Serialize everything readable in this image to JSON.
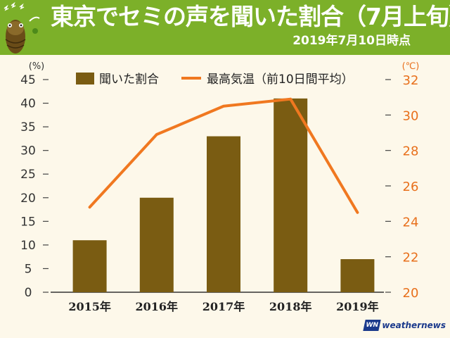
{
  "header": {
    "title": "東京でセミの声を聞いた割合（7月上旬）",
    "subtitle": "2019年7月10日時点"
  },
  "logo": {
    "mark": "WN",
    "text": "weathernews"
  },
  "colors": {
    "header_bg": "#7cb029",
    "bar": "#7a5c12",
    "line": "#f07820",
    "left_axis": "#333333",
    "right_axis": "#e8701c"
  },
  "chart_data": {
    "type": "bar",
    "categories": [
      "2015年",
      "2016年",
      "2017年",
      "2018年",
      "2019年"
    ],
    "series": [
      {
        "name": "聞いた割合",
        "type": "bar",
        "axis": "left",
        "values": [
          11,
          20,
          33,
          41,
          7
        ]
      },
      {
        "name": "最高気温（前10日間平均）",
        "type": "line",
        "axis": "right",
        "values": [
          24.8,
          28.9,
          30.5,
          30.9,
          24.5
        ]
      }
    ],
    "y_left": {
      "unit_label": "(%)",
      "ylim": [
        0,
        45
      ],
      "ticks": [
        0,
        5,
        10,
        15,
        20,
        25,
        30,
        35,
        40,
        45
      ]
    },
    "y_right": {
      "unit_label": "(℃)",
      "ylim": [
        20,
        32
      ],
      "ticks": [
        20,
        22,
        24,
        26,
        28,
        30,
        32
      ]
    },
    "grid": false,
    "legend": "top"
  }
}
